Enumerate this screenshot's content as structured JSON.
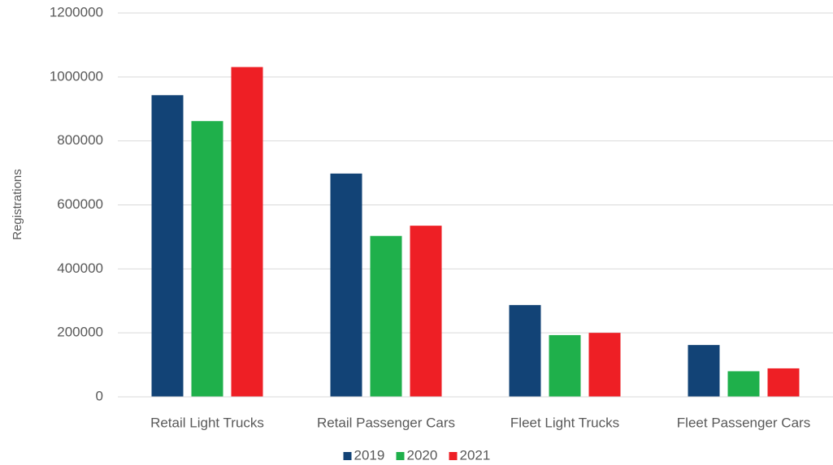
{
  "chart_data": {
    "type": "bar",
    "title": "",
    "xlabel": "",
    "ylabel": "Registrations",
    "ylim": [
      0,
      1200000
    ],
    "yticks": [
      0,
      200000,
      400000,
      600000,
      800000,
      1000000,
      1200000
    ],
    "ytick_labels": [
      "0",
      "200000",
      "400000",
      "600000",
      "800000",
      "1000000",
      "1200000"
    ],
    "grid": true,
    "legend_position": "bottom",
    "categories": [
      "Retail Light Trucks",
      "Retail Passenger Cars",
      "Fleet Light Trucks",
      "Fleet Passenger Cars"
    ],
    "series": [
      {
        "name": "2019",
        "color": "#124376",
        "values": [
          943000,
          698000,
          287000,
          162000
        ]
      },
      {
        "name": "2020",
        "color": "#1fb04b",
        "values": [
          862000,
          503000,
          193000,
          80000
        ]
      },
      {
        "name": "2021",
        "color": "#ee1f25",
        "values": [
          1031000,
          535000,
          200000,
          89000
        ]
      }
    ]
  }
}
